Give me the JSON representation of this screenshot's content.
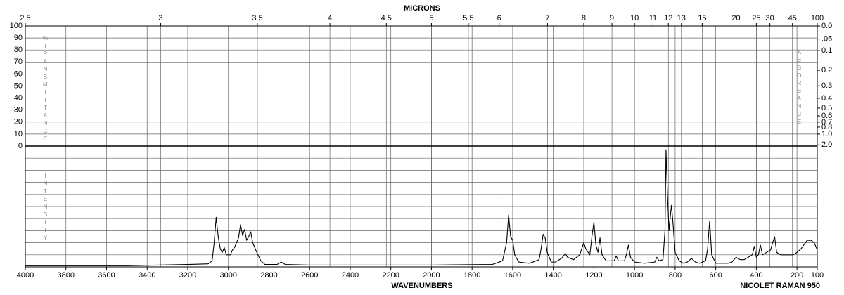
{
  "chart_data": {
    "type": "line",
    "x_label": "WAVENUMBERS",
    "x2_label": "MICRONS",
    "note": "NICOLET RAMAN 950",
    "y_label": "%TRANSMITTANCE",
    "y2_label": "ABSORBANCE",
    "intensity_label": "INTENSITY",
    "color": "#000000",
    "grid": true,
    "xlim": [
      4000,
      100
    ],
    "xticks": [
      4000,
      3800,
      3600,
      3400,
      3200,
      3000,
      2800,
      2600,
      2400,
      2200,
      2000,
      1800,
      1600,
      1400,
      1200,
      1000,
      800,
      600,
      400,
      200,
      100
    ],
    "x2ticks": [
      2.5,
      3,
      3.5,
      4,
      4.5,
      5,
      5.5,
      6,
      7,
      8,
      9,
      10,
      11,
      12,
      13,
      15,
      20,
      25,
      30,
      45,
      100
    ],
    "ylim": [
      0,
      100
    ],
    "yticks": [
      0,
      10,
      20,
      30,
      40,
      50,
      60,
      70,
      80,
      90,
      100
    ],
    "y2ticks": [
      {
        "value": 0,
        "label": "0.0"
      },
      {
        "value": 0.05,
        "label": ".05"
      },
      0.1,
      0.2,
      0.3,
      0.4,
      0.5,
      0.6,
      0.7,
      0.8,
      {
        "value": 1,
        "label": "1.0"
      },
      {
        "value": 2,
        "label": "2.0"
      }
    ],
    "x": [
      4000,
      3500,
      3200,
      3100,
      3080,
      3070,
      3060,
      3050,
      3040,
      3030,
      3020,
      3010,
      2990,
      2980,
      2970,
      2950,
      2940,
      2930,
      2920,
      2910,
      2900,
      2890,
      2880,
      2860,
      2840,
      2820,
      2760,
      2740,
      2720,
      2600,
      2000,
      1700,
      1650,
      1630,
      1620,
      1610,
      1600,
      1590,
      1570,
      1520,
      1500,
      1470,
      1460,
      1450,
      1440,
      1430,
      1410,
      1390,
      1380,
      1360,
      1340,
      1330,
      1300,
      1270,
      1250,
      1240,
      1220,
      1210,
      1200,
      1190,
      1180,
      1170,
      1160,
      1140,
      1100,
      1090,
      1080,
      1050,
      1040,
      1030,
      1020,
      1000,
      950,
      900,
      890,
      880,
      860,
      850,
      845,
      838,
      830,
      825,
      818,
      810,
      800,
      780,
      760,
      740,
      720,
      700,
      680,
      650,
      640,
      630,
      620,
      600,
      540,
      520,
      500,
      490,
      480,
      460,
      440,
      420,
      410,
      400,
      390,
      380,
      370,
      350,
      330,
      320,
      310,
      300,
      280,
      250,
      220,
      200,
      180,
      150,
      130,
      115,
      100
    ],
    "values": [
      1,
      1,
      2,
      2.5,
      5,
      20,
      41,
      25,
      15,
      12,
      16,
      10,
      10,
      14,
      16,
      24,
      35,
      26,
      31,
      22,
      25,
      29,
      20,
      12,
      5,
      2,
      2,
      4,
      2,
      1.5,
      1.5,
      2,
      5,
      20,
      43,
      25,
      22,
      10,
      4,
      3,
      4,
      6,
      15,
      27,
      24,
      12,
      4,
      4,
      5,
      7,
      11,
      8,
      6,
      10,
      20,
      15,
      10,
      25,
      37,
      18,
      12,
      24,
      10,
      5,
      5,
      9,
      5,
      5,
      10,
      18,
      8,
      4,
      3,
      4,
      8,
      5,
      6,
      30,
      97,
      60,
      30,
      40,
      51,
      35,
      12,
      5,
      3,
      4,
      7,
      4,
      3,
      5,
      15,
      38,
      10,
      3,
      3,
      4,
      8,
      7,
      6,
      6,
      8,
      10,
      17,
      8,
      10,
      18,
      10,
      12,
      14,
      20,
      25,
      12,
      10,
      10,
      10,
      12,
      15,
      22,
      22,
      20,
      14
    ]
  }
}
